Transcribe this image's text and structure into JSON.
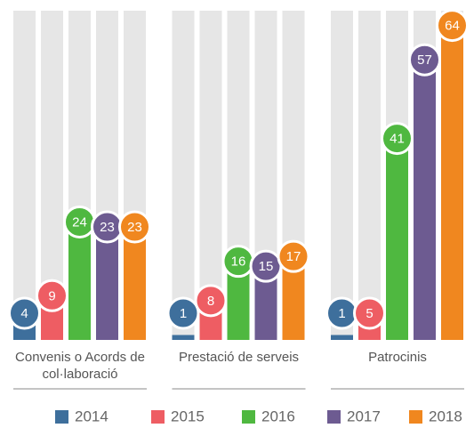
{
  "chart_data": {
    "type": "bar",
    "categories": [
      "Convenis o Acords de col·laboració",
      "Prestació de serveis",
      "Patrocinis"
    ],
    "series": [
      {
        "name": "2014",
        "color": "#3e6f9c",
        "values": [
          4,
          1,
          1
        ]
      },
      {
        "name": "2015",
        "color": "#ee5d63",
        "values": [
          9,
          8,
          5
        ]
      },
      {
        "name": "2016",
        "color": "#4fb840",
        "values": [
          24,
          16,
          41
        ]
      },
      {
        "name": "2017",
        "color": "#6d5b91",
        "values": [
          23,
          15,
          57
        ]
      },
      {
        "name": "2018",
        "color": "#f0871f",
        "values": [
          23,
          17,
          64
        ]
      }
    ],
    "ylim": [
      0,
      67
    ],
    "legend": "bottom"
  }
}
